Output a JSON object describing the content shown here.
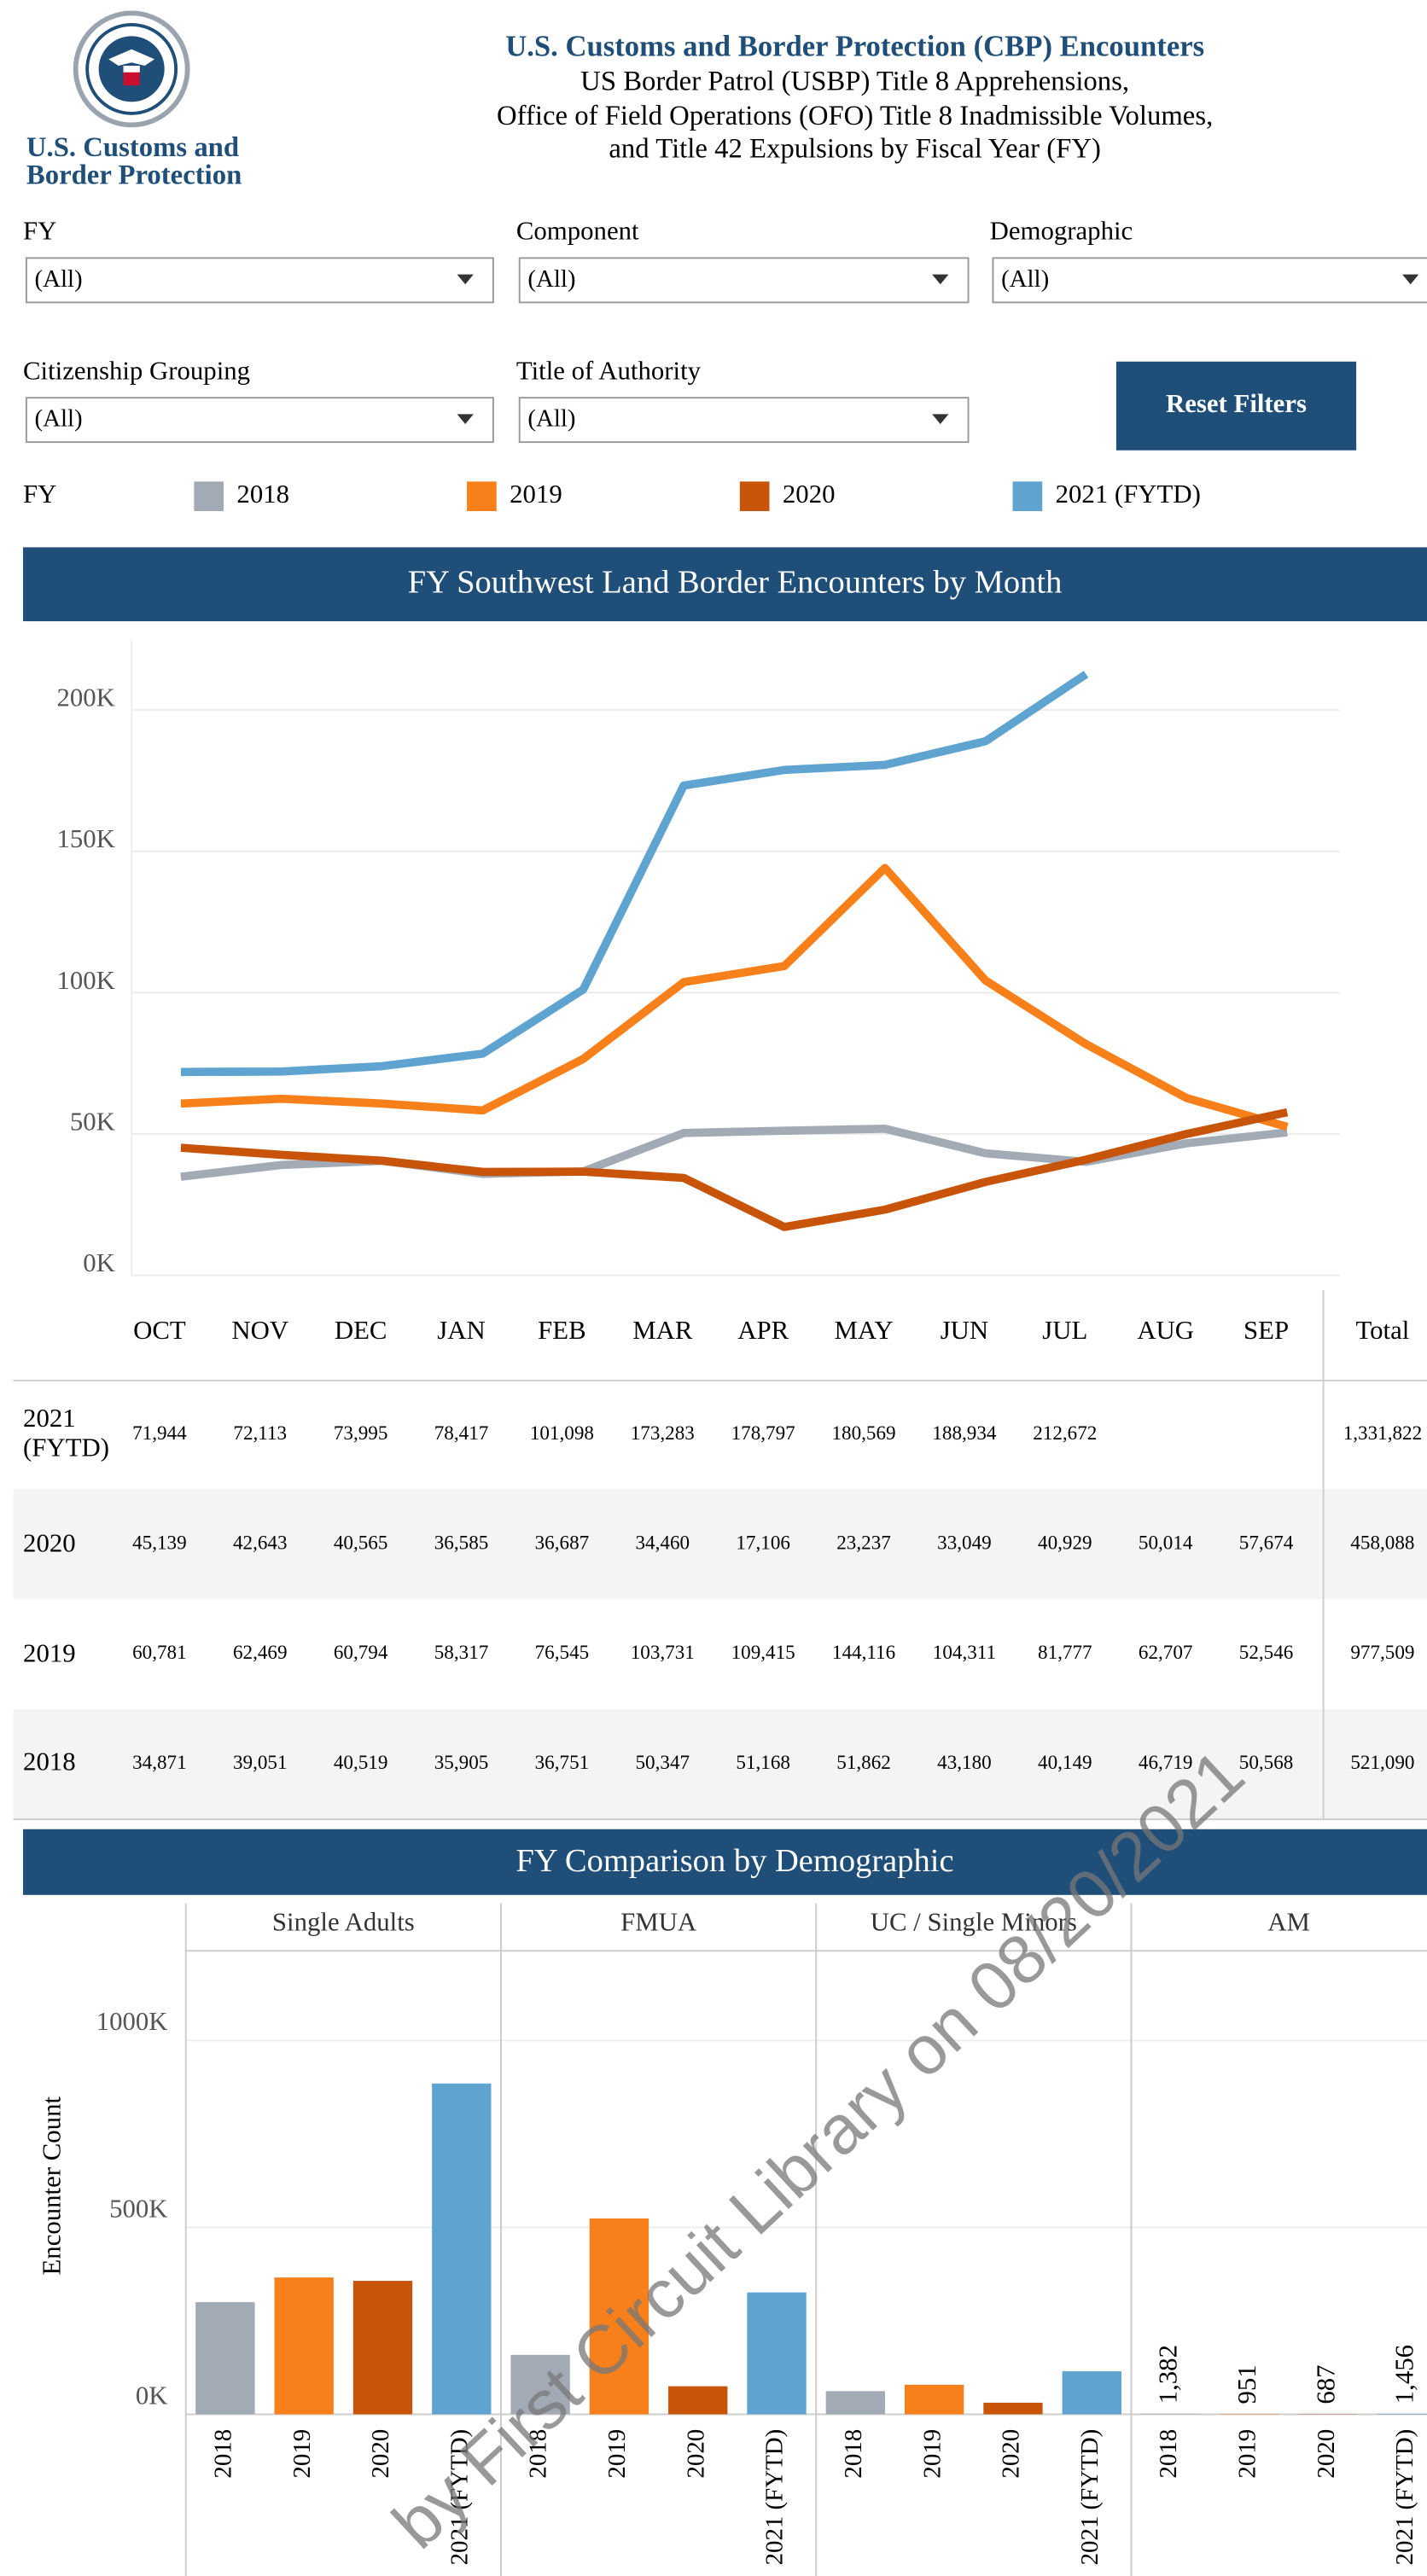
{
  "header": {
    "logo_text": [
      "U.S. Customs and",
      "Border Protection"
    ],
    "title": "U.S. Customs and Border Protection (CBP) Encounters",
    "subtitle_lines": [
      "US Border Patrol (USBP) Title 8 Apprehensions,",
      "Office of Field Operations (OFO) Title 8 Inadmissible Volumes,",
      "and Title 42 Expulsions by Fiscal Year (FY)"
    ]
  },
  "filters": [
    {
      "label": "FY",
      "value": "(All)"
    },
    {
      "label": "Component",
      "value": "(All)"
    },
    {
      "label": "Demographic",
      "value": "(All)"
    },
    {
      "label": "Citizenship Grouping",
      "value": "(All)"
    },
    {
      "label": "Title of Authority",
      "value": "(All)"
    }
  ],
  "reset_button": "Reset Filters",
  "legend_title": "FY",
  "chart_data": [
    {
      "type": "line",
      "title": "FY Southwest Land Border Encounters by Month",
      "categories": [
        "OCT",
        "NOV",
        "DEC",
        "JAN",
        "FEB",
        "MAR",
        "APR",
        "MAY",
        "JUN",
        "JUL",
        "AUG",
        "SEP"
      ],
      "series": [
        {
          "name": "2018",
          "color": "#a2aab6",
          "values": [
            34871,
            39051,
            40519,
            35905,
            36751,
            50347,
            51168,
            51862,
            43180,
            40149,
            46719,
            50568
          ],
          "value_labels": [
            "34,871",
            "39,051",
            "40,519",
            "35,905",
            "36,751",
            "50,347",
            "51,168",
            "51,862",
            "43,180",
            "40,149",
            "46,719",
            "50,568"
          ]
        },
        {
          "name": "2019",
          "color": "#f8801b",
          "values": [
            60781,
            62469,
            60794,
            58317,
            76545,
            103731,
            109415,
            144116,
            104311,
            81777,
            62707,
            52546
          ],
          "value_labels": [
            "60,781",
            "62,469",
            "60,794",
            "58,317",
            "76,545",
            "103,731",
            "109,415",
            "144,116",
            "104,311",
            "81,777",
            "62,707",
            "52,546"
          ]
        },
        {
          "name": "2020",
          "color": "#c8540a",
          "values": [
            45139,
            42643,
            40565,
            36585,
            36687,
            34460,
            17106,
            23237,
            33049,
            40929,
            50014,
            57674
          ],
          "value_labels": [
            "45,139",
            "42,643",
            "40,565",
            "36,585",
            "36,687",
            "34,460",
            "17,106",
            "23,237",
            "33,049",
            "40,929",
            "50,014",
            "57,674"
          ]
        },
        {
          "name": "2021 (FYTD)",
          "color": "#5fa3d1",
          "values": [
            71944,
            72113,
            73995,
            78417,
            101098,
            173283,
            178797,
            180569,
            188934,
            212672,
            null,
            null
          ],
          "value_labels": [
            "71,944",
            "72,113",
            "73,995",
            "78,417",
            "101,098",
            "173,283",
            "178,797",
            "180,569",
            "188,934",
            "212,672",
            null,
            null
          ]
        }
      ],
      "ylim": [
        0,
        225000
      ],
      "yticks": [
        {
          "value": 0,
          "label": "0K"
        },
        {
          "value": 50000,
          "label": "50K"
        },
        {
          "value": 100000,
          "label": "100K"
        },
        {
          "value": 150000,
          "label": "150K"
        },
        {
          "value": 200000,
          "label": "200K"
        }
      ],
      "grid": true
    },
    {
      "type": "bar",
      "title": "FY Comparison by Demographic",
      "y_label": "Encounter Count",
      "categories": [
        "2018",
        "2019",
        "2020",
        "2021 (FYTD)"
      ],
      "colors": [
        "#a2aab6",
        "#f8801b",
        "#c8540a",
        "#5fa3d1"
      ],
      "facets": [
        {
          "name": "Single Adults",
          "values": [
            300000,
            366000,
            357000,
            885000
          ]
        },
        {
          "name": "FMUA",
          "values": [
            159000,
            524000,
            75000,
            326000
          ]
        },
        {
          "name": "UC / Single Minors",
          "values": [
            62000,
            79000,
            31000,
            115000
          ]
        },
        {
          "name": "AM",
          "values": [
            1382,
            951,
            687,
            1456
          ],
          "value_labels": [
            "1,382",
            "951",
            "687",
            "1,456"
          ]
        }
      ],
      "ylim": [
        0,
        1240000
      ],
      "yticks": [
        {
          "value": 0,
          "label": "0K"
        },
        {
          "value": 500000,
          "label": "500K"
        },
        {
          "value": 1000000,
          "label": "1000K"
        }
      ],
      "grid": true
    }
  ],
  "table": {
    "total_header": "Total",
    "totals": [
      "521,090",
      "977,509",
      "458,088",
      "1,331,822"
    ]
  },
  "watermark": "by First Circuit Library on 08/20/2021"
}
